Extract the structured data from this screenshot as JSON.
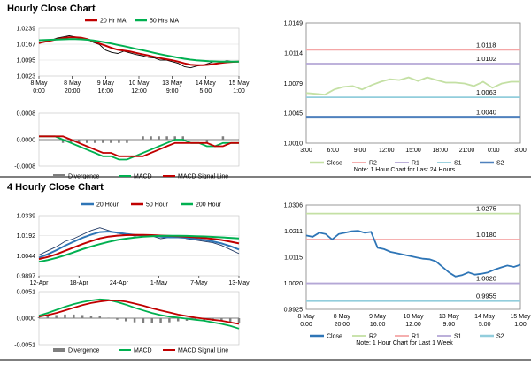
{
  "sections": [
    {
      "title": "Hourly Close Chart"
    },
    {
      "title": "4 Hourly Close Chart"
    }
  ],
  "chart_data": [
    {
      "id": "hourly-price",
      "type": "line",
      "legend": [
        "20 Hr MA",
        "50 Hrs MA"
      ],
      "x_ticks": [
        "8 May\n0:00",
        "8 May\n20:00",
        "9 May\n16:00",
        "10 May\n12:00",
        "13 May\n9:00",
        "14 May\n5:00",
        "15 May\n1:00"
      ],
      "ylim": [
        1.0023,
        1.0239
      ],
      "y_ticks": [
        "1.0023",
        "1.0095",
        "1.0167",
        "1.0239"
      ],
      "series": [
        {
          "name": "Price",
          "color": "#000000",
          "values": [
            1.017,
            1.018,
            1.0185,
            1.0195,
            1.02,
            1.0205,
            1.02,
            1.0195,
            1.019,
            1.0175,
            1.0165,
            1.014,
            1.013,
            1.0125,
            1.0135,
            1.0128,
            1.012,
            1.0115,
            1.0108,
            1.0105,
            1.0095,
            1.0095,
            1.0088,
            1.008,
            1.0065,
            1.006,
            1.0068,
            1.0072,
            1.008,
            1.009,
            1.0085,
            1.0092,
            1.0088,
            1.009
          ]
        },
        {
          "name": "20 Hr MA",
          "color": "#c00000",
          "values": [
            1.0172,
            1.0178,
            1.0184,
            1.019,
            1.0195,
            1.0198,
            1.0198,
            1.0196,
            1.019,
            1.018,
            1.017,
            1.016,
            1.015,
            1.0142,
            1.0138,
            1.0134,
            1.0128,
            1.0122,
            1.0116,
            1.011,
            1.0104,
            1.0099,
            1.0094,
            1.0088,
            1.008,
            1.0074,
            1.0072,
            1.0072,
            1.0074,
            1.0078,
            1.0082,
            1.0085,
            1.0087,
            1.0088
          ]
        },
        {
          "name": "50 Hrs MA",
          "color": "#00b050",
          "values": [
            1.0185,
            1.0186,
            1.0187,
            1.0188,
            1.0189,
            1.019,
            1.019,
            1.0189,
            1.0187,
            1.0184,
            1.018,
            1.0175,
            1.017,
            1.0164,
            1.0158,
            1.0152,
            1.0146,
            1.014,
            1.0134,
            1.0128,
            1.0122,
            1.0116,
            1.0111,
            1.0106,
            1.0101,
            1.0097,
            1.0094,
            1.0092,
            1.009,
            1.0089,
            1.0088,
            1.0088,
            1.0088,
            1.0088
          ]
        }
      ]
    },
    {
      "id": "hourly-macd",
      "type": "line",
      "ylim": [
        -0.0008,
        0.0008
      ],
      "y_ticks": [
        "-0.0008",
        "0.0000",
        "0.0008"
      ],
      "legend": [
        "Divergence",
        "MACD",
        "MACD Signal Line"
      ],
      "series": [
        {
          "name": "MACD",
          "color": "#00b050",
          "values": [
            0.0001,
            0.0001,
            0.0001,
            0.0,
            -0.0001,
            -0.0002,
            -0.0003,
            -0.0004,
            -0.0005,
            -0.0005,
            -0.0006,
            -0.0006,
            -0.0005,
            -0.0004,
            -0.0003,
            -0.0002,
            -0.0001,
            0.0,
            0.0,
            -0.0001,
            -0.0001,
            -0.0002,
            -0.0002,
            -0.0001,
            -0.0001,
            -0.0001
          ]
        },
        {
          "name": "MACD Signal Line",
          "color": "#c00000",
          "values": [
            0.0001,
            0.0001,
            0.0001,
            0.0001,
            0.0,
            -0.0001,
            -0.0002,
            -0.0003,
            -0.0004,
            -0.0004,
            -0.0005,
            -0.0005,
            -0.0005,
            -0.0005,
            -0.0004,
            -0.0003,
            -0.0002,
            -0.0001,
            -0.0001,
            -0.0001,
            -0.0001,
            -0.0001,
            -0.0002,
            -0.0002,
            -0.0001,
            -0.0001
          ]
        },
        {
          "name": "Divergence",
          "color": "#7f7f7f",
          "values": [
            0.0,
            0.0,
            0.0,
            -0.0001,
            -0.0001,
            -0.0001,
            -0.0001,
            -0.0001,
            -0.0001,
            -0.0001,
            -0.0001,
            -0.0001,
            0.0,
            0.0001,
            0.0001,
            0.0001,
            0.0001,
            0.0001,
            0.0001,
            0.0,
            0.0,
            -0.0001,
            0.0,
            0.0001,
            0.0,
            0.0
          ]
        }
      ]
    },
    {
      "id": "hourly-levels",
      "type": "line",
      "x_ticks": [
        "3:00",
        "6:00",
        "9:00",
        "12:00",
        "15:00",
        "18:00",
        "21:00",
        "0:00",
        "3:00"
      ],
      "ylim": [
        1.001,
        1.0149
      ],
      "y_ticks": [
        "1.0010",
        "1.0045",
        "1.0079",
        "1.0114",
        "1.0149"
      ],
      "legend": [
        "Close",
        "R2",
        "R1",
        "S1",
        "S2"
      ],
      "note": "Note: 1 Hour Chart for Last 24 Hours",
      "levels": [
        {
          "name": "R2",
          "value": 1.0118,
          "label": "1.0118",
          "color": "#f4a6a6"
        },
        {
          "name": "R1",
          "value": 1.0102,
          "label": "1.0102",
          "color": "#b4a7d6"
        },
        {
          "name": "S1",
          "value": 1.0063,
          "label": "1.0063",
          "color": "#92cddc"
        },
        {
          "name": "S2",
          "value": 1.004,
          "label": "1.0040",
          "color": "#4f81bd"
        }
      ],
      "close": {
        "color": "#c4e0a4",
        "values": [
          1.0068,
          1.0067,
          1.0066,
          1.0072,
          1.0075,
          1.0076,
          1.0072,
          1.0077,
          1.0081,
          1.0084,
          1.0083,
          1.0086,
          1.0082,
          1.0086,
          1.0083,
          1.008,
          1.008,
          1.0079,
          1.0076,
          1.0081,
          1.0074,
          1.0079,
          1.0081,
          1.0081
        ]
      }
    },
    {
      "id": "four-hourly-price",
      "type": "line",
      "legend": [
        "20 Hour",
        "50 Hour",
        "200 Hour"
      ],
      "x_ticks": [
        "12-Apr",
        "18-Apr",
        "24-Apr",
        "1-May",
        "7-May",
        "13-May"
      ],
      "ylim": [
        0.9897,
        1.0339
      ],
      "y_ticks": [
        "0.9897",
        "1.0044",
        "1.0192",
        "1.0339"
      ],
      "series": [
        {
          "name": "Price",
          "color": "#1f3864",
          "values": [
            1.005,
            1.008,
            1.011,
            1.015,
            1.017,
            1.02,
            1.023,
            1.025,
            1.023,
            1.021,
            1.02,
            1.019,
            1.02,
            1.019,
            1.017,
            1.018,
            1.019,
            1.017,
            1.016,
            1.015,
            1.014,
            1.012,
            1.009,
            1.006
          ]
        },
        {
          "name": "20 Hour",
          "color": "#2e75b6",
          "values": [
            1.003,
            1.0055,
            1.0085,
            1.0118,
            1.0148,
            1.0176,
            1.02,
            1.0218,
            1.0222,
            1.0215,
            1.0205,
            1.0198,
            1.0195,
            1.0192,
            1.0185,
            1.018,
            1.018,
            1.0176,
            1.0168,
            1.016,
            1.015,
            1.0135,
            1.0115,
            1.009
          ]
        },
        {
          "name": "50 Hour",
          "color": "#c00000",
          "values": [
            1.002,
            1.0035,
            1.0055,
            1.008,
            1.0105,
            1.013,
            1.0152,
            1.0172,
            1.0185,
            1.0192,
            1.0196,
            1.0198,
            1.0198,
            1.0196,
            1.0193,
            1.019,
            1.0188,
            1.0185,
            1.018,
            1.0175,
            1.0168,
            1.016,
            1.0148,
            1.0135
          ]
        },
        {
          "name": "200 Hour",
          "color": "#00b050",
          "values": [
            1.0,
            1.0012,
            1.0028,
            1.0048,
            1.007,
            1.0092,
            1.0112,
            1.013,
            1.0146,
            1.016,
            1.017,
            1.0178,
            1.0184,
            1.0188,
            1.019,
            1.0191,
            1.0191,
            1.019,
            1.0188,
            1.0186,
            1.0183,
            1.018,
            1.0176,
            1.0172
          ]
        }
      ]
    },
    {
      "id": "four-hourly-macd",
      "type": "line",
      "ylim": [
        -0.0051,
        0.0051
      ],
      "y_ticks": [
        "-0.0051",
        "0.0000",
        "0.0051"
      ],
      "legend": [
        "Divergence",
        "MACD",
        "MACD Signal Line"
      ],
      "series": [
        {
          "name": "MACD",
          "color": "#00b050",
          "values": [
            0.0005,
            0.001,
            0.0016,
            0.0022,
            0.0027,
            0.0031,
            0.0034,
            0.0036,
            0.0035,
            0.0031,
            0.0026,
            0.002,
            0.0015,
            0.001,
            0.0006,
            0.0003,
            0.0001,
            -0.0001,
            -0.0003,
            -0.0005,
            -0.0008,
            -0.0011,
            -0.0015,
            -0.002
          ]
        },
        {
          "name": "MACD Signal Line",
          "color": "#c00000",
          "values": [
            0.0003,
            0.0006,
            0.001,
            0.0015,
            0.002,
            0.0025,
            0.0029,
            0.0032,
            0.0034,
            0.0034,
            0.0032,
            0.0028,
            0.0024,
            0.0019,
            0.0015,
            0.0011,
            0.0007,
            0.0004,
            0.0001,
            -0.0001,
            -0.0003,
            -0.0005,
            -0.0008,
            -0.0011
          ]
        },
        {
          "name": "Divergence",
          "color": "#7f7f7f",
          "values": [
            0.0002,
            0.0004,
            0.0006,
            0.0007,
            0.0007,
            0.0006,
            0.0005,
            0.0004,
            0.0001,
            -0.0003,
            -0.0006,
            -0.0008,
            -0.0009,
            -0.0009,
            -0.0009,
            -0.0008,
            -0.0006,
            -0.0005,
            -0.0004,
            -0.0004,
            -0.0005,
            -0.0006,
            -0.0007,
            -0.0009
          ]
        }
      ]
    },
    {
      "id": "four-hourly-levels",
      "type": "line",
      "x_ticks": [
        "8 May\n0:00",
        "8 May\n20:00",
        "9 May\n16:00",
        "10 May\n12:00",
        "13 May\n9:00",
        "14 May\n5:00",
        "15 May\n1:00"
      ],
      "ylim": [
        0.9925,
        1.0306
      ],
      "y_ticks": [
        "0.9925",
        "1.0020",
        "1.0115",
        "1.0211",
        "1.0306"
      ],
      "legend": [
        "Close",
        "R2",
        "R1",
        "S1",
        "S2"
      ],
      "note": "Note: 1 Hour Chart for Last 1 Week",
      "levels": [
        {
          "name": "R2",
          "value": 1.0275,
          "label": "1.0275",
          "color": "#c4e0a4"
        },
        {
          "name": "R1",
          "value": 1.018,
          "label": "1.0180",
          "color": "#f4a6a6"
        },
        {
          "name": "S1",
          "value": 1.002,
          "label": "1.0020",
          "color": "#b4a7d6"
        },
        {
          "name": "S2",
          "value": 0.9955,
          "label": "0.9955",
          "color": "#92cddc"
        }
      ],
      "close": {
        "color": "#2e75b6",
        "values": [
          1.0195,
          1.019,
          1.0205,
          1.02,
          1.018,
          1.02,
          1.0205,
          1.021,
          1.0212,
          1.0205,
          1.0208,
          1.015,
          1.0145,
          1.0135,
          1.013,
          1.0125,
          1.012,
          1.0115,
          1.011,
          1.0108,
          1.01,
          1.008,
          1.006,
          1.0045,
          1.005,
          1.006,
          1.0052,
          1.0055,
          1.006,
          1.007,
          1.0078,
          1.0085,
          1.008,
          1.0088
        ]
      }
    }
  ]
}
